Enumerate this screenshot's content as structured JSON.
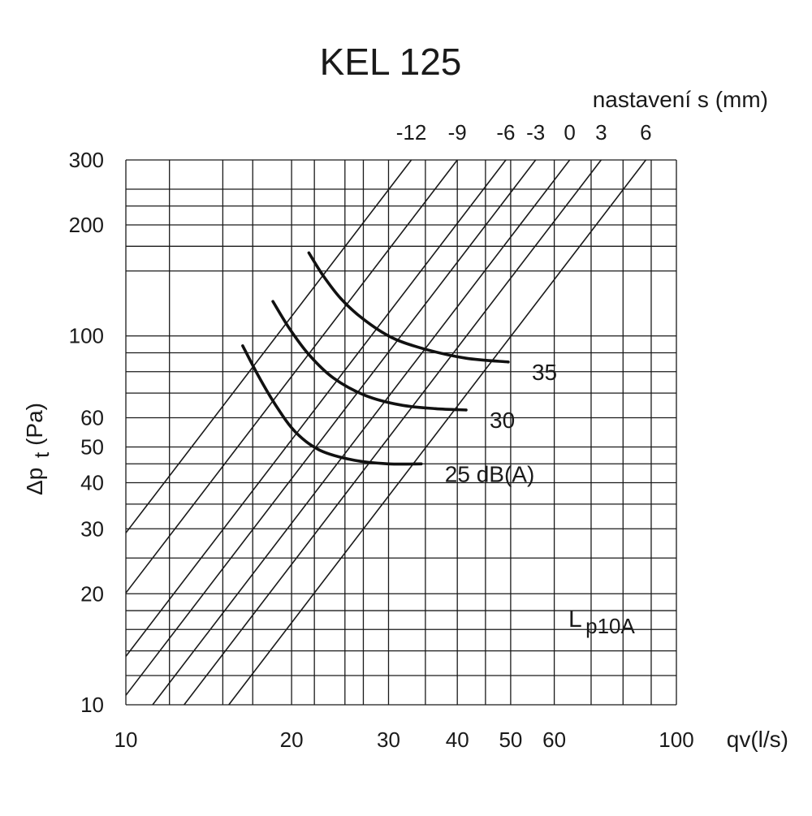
{
  "chart_data": {
    "type": "line",
    "title": "KEL 125",
    "x_scale": "log",
    "y_scale": "log",
    "xlim": [
      10,
      100
    ],
    "ylim": [
      10,
      300
    ],
    "grid": true,
    "xlabel": "qv(l/s)",
    "ylabel": {
      "delta": "Δp",
      "sub": "t",
      "unit": "(Pa)"
    },
    "x_ticks": [
      10,
      20,
      30,
      40,
      50,
      60,
      100
    ],
    "y_ticks": [
      10,
      20,
      30,
      40,
      50,
      60,
      100,
      200,
      300
    ],
    "x_minor_grid": [
      12,
      15,
      17,
      22,
      25,
      27,
      35,
      45,
      70,
      80,
      90
    ],
    "y_minor_grid": [
      12,
      14,
      16,
      18,
      25,
      35,
      45,
      70,
      80,
      90,
      150,
      175,
      225,
      250
    ],
    "setting_caption": "nastavení s (mm)",
    "settings": [
      {
        "label": "-12",
        "x": 33,
        "y": 300,
        "slope": 1.95
      },
      {
        "label": "-9",
        "x": 40,
        "y": 300,
        "slope": 1.95
      },
      {
        "label": "-6",
        "x": 49,
        "y": 300,
        "slope": 1.95
      },
      {
        "label": "-3",
        "x": 55.5,
        "y": 300,
        "slope": 1.95
      },
      {
        "label": "0",
        "x": 64,
        "y": 300,
        "slope": 1.95
      },
      {
        "label": "3",
        "x": 73,
        "y": 300,
        "slope": 1.95
      },
      {
        "label": "6",
        "x": 88,
        "y": 300,
        "slope": 1.95
      }
    ],
    "series": [
      {
        "label": "25 dB(A)",
        "points": [
          [
            16.3,
            94
          ],
          [
            17.4,
            78
          ],
          [
            18.7,
            65
          ],
          [
            20.3,
            55
          ],
          [
            22.5,
            49
          ],
          [
            26,
            46
          ],
          [
            30,
            45
          ],
          [
            34.4,
            45
          ]
        ]
      },
      {
        "label": "30",
        "points": [
          [
            18.5,
            124
          ],
          [
            19.8,
            105
          ],
          [
            21.5,
            89
          ],
          [
            23.8,
            77
          ],
          [
            27.2,
            69
          ],
          [
            31.5,
            65
          ],
          [
            36.5,
            63.5
          ],
          [
            41.5,
            63
          ]
        ]
      },
      {
        "label": "35",
        "points": [
          [
            21.5,
            168
          ],
          [
            22.8,
            146
          ],
          [
            24.6,
            126
          ],
          [
            27,
            111
          ],
          [
            30.4,
            99
          ],
          [
            35,
            92
          ],
          [
            41.5,
            87
          ],
          [
            49.5,
            85
          ]
        ]
      }
    ],
    "annotation": {
      "main": "L",
      "sub": "p10A"
    }
  }
}
